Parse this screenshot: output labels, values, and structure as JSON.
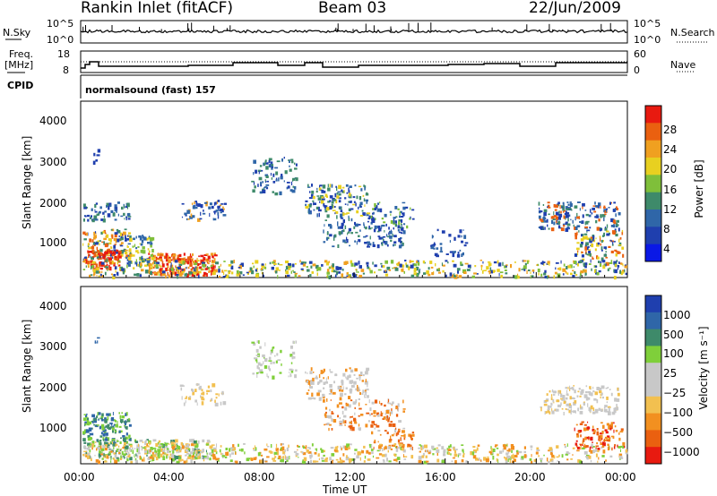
{
  "header": {
    "station": "Rankin Inlet (fitACF)",
    "beam": "Beam 03",
    "date": "22/Jun/2009"
  },
  "top_panels": {
    "nsky_label": "N.Sky",
    "nsky_ticks": [
      "10^5",
      "10^0"
    ],
    "nsearch_label": "N.Search",
    "nsearch_ticks": [
      "10^5",
      "10^0"
    ],
    "freq_label": "Freq.",
    "freq_unit": "[MHz]",
    "freq_ticks": [
      "18",
      "8"
    ],
    "nave_label": "Nave",
    "nave_ticks": [
      "60",
      "0"
    ],
    "cpid_label": "CPID",
    "cpid_text": "normalsound (fast) 157"
  },
  "colors": {
    "power": [
      "#0a18e6",
      "#1f3fae",
      "#2f66a8",
      "#3e8a6a",
      "#7fbf3a",
      "#e8d020",
      "#f0a020",
      "#ea6010",
      "#e81a10"
    ],
    "velocity": [
      "#e81a10",
      "#ea6010",
      "#f29020",
      "#f2c050",
      "#c8c8c8",
      "#c8c8c8",
      "#7fcf3a",
      "#3e8a6a",
      "#2f66a8",
      "#1f3fae"
    ]
  },
  "chart_data": [
    {
      "type": "heatmap",
      "name": "power",
      "ylabel": "Slant Range [km]",
      "ylim": [
        180,
        4500
      ],
      "yticks": [
        "1000",
        "2000",
        "3000",
        "4000"
      ],
      "colorbar_label": "Power [dB]",
      "colorbar_ticks": [
        "28",
        "24",
        "20",
        "16",
        "12",
        "8",
        "4"
      ]
    },
    {
      "type": "heatmap",
      "name": "velocity",
      "ylabel": "Slant Range [km]",
      "ylim": [
        180,
        4500
      ],
      "yticks": [
        "1000",
        "2000",
        "3000",
        "4000"
      ],
      "colorbar_label": "Velocity [m s⁻¹]",
      "colorbar_ticks": [
        "1000",
        "500",
        "100",
        "25",
        "−25",
        "−100",
        "−500",
        "−1000"
      ]
    },
    {
      "type": "line",
      "name": "time-axis",
      "xlabel": "Time UT",
      "xlim": [
        "00:00",
        "24:00"
      ],
      "xticks": [
        "00:00",
        "04:00",
        "08:00",
        "12:00",
        "16:00",
        "20:00",
        "00:00"
      ]
    }
  ]
}
